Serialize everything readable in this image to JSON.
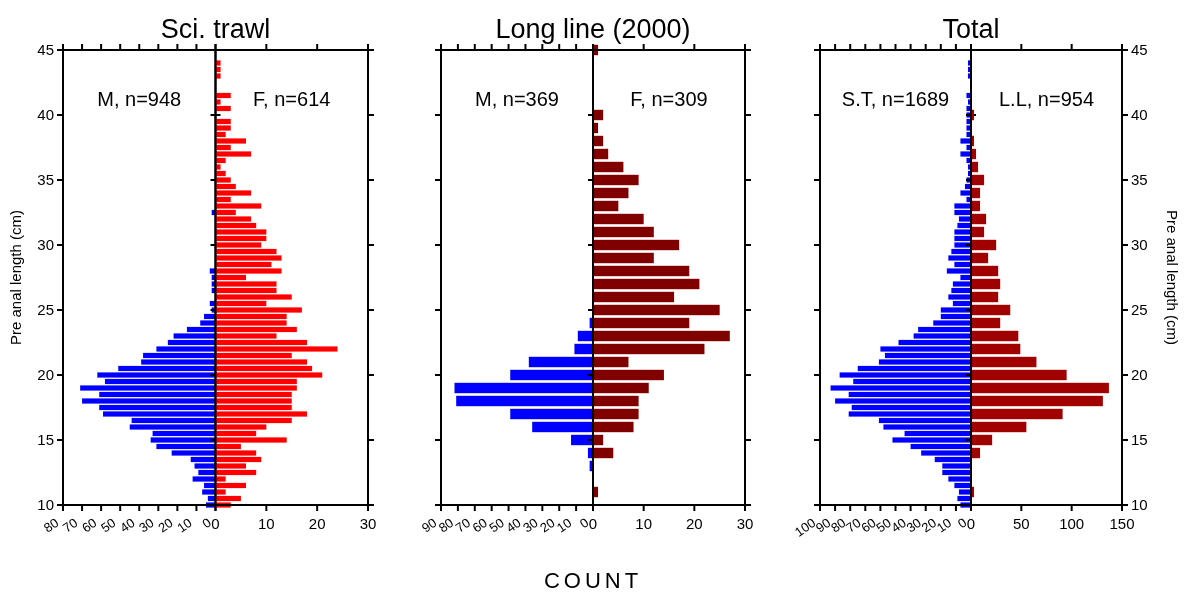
{
  "chart_data": [
    {
      "type": "bar",
      "orientation": "horizontal",
      "title": "Sci. trawl",
      "ylabel": "Pre anal length (cm)",
      "annotations": [
        "M, n=948"
      ],
      "xlim": [
        80,
        0
      ],
      "xticks": [
        80,
        70,
        60,
        50,
        40,
        30,
        20,
        10,
        0
      ],
      "ylim": [
        10,
        45
      ],
      "yticks": [
        10,
        15,
        20,
        25,
        30,
        35,
        40,
        45
      ],
      "series": [
        {
          "color": "#0000ff",
          "x": [
            10,
            10.5,
            11,
            11.5,
            12,
            12.5,
            13,
            13.5,
            14,
            14.5,
            15,
            15.5,
            16,
            16.5,
            17,
            17.5,
            18,
            18.5,
            19,
            19.5,
            20,
            20.5,
            21,
            21.5,
            22,
            22.5,
            23,
            23.5,
            24,
            24.5,
            25,
            25.5,
            26.5,
            27,
            27.5,
            28,
            32.5
          ],
          "values": [
            5,
            4,
            7,
            6,
            12,
            9,
            11,
            13,
            23,
            31,
            34,
            33,
            45,
            44,
            59,
            61,
            70,
            61,
            71,
            58,
            62,
            51,
            39,
            38,
            31,
            25,
            22,
            15,
            8,
            6,
            2,
            3,
            2,
            2,
            2,
            3,
            2
          ]
        }
      ]
    },
    {
      "type": "bar",
      "orientation": "horizontal",
      "annotations": [
        "F, n=614"
      ],
      "xlim": [
        0,
        30
      ],
      "xticks": [
        0,
        10,
        20,
        30
      ],
      "ylim": [
        10,
        45
      ],
      "yticks": [
        10,
        15,
        20,
        25,
        30,
        35,
        40,
        45
      ],
      "tick_labels": "x",
      "series": [
        {
          "color": "#ff0000",
          "x": [
            10,
            10.5,
            11,
            11.5,
            12,
            12.5,
            13,
            13.5,
            14,
            14.5,
            15,
            15.5,
            16,
            16.5,
            17,
            17.5,
            18,
            18.5,
            19,
            19.5,
            20,
            20.5,
            21,
            21.5,
            22,
            22.5,
            23,
            23.5,
            24,
            24.5,
            25,
            25.5,
            26,
            26.5,
            27,
            27.5,
            28,
            28.5,
            29,
            29.5,
            30,
            30.5,
            31,
            31.5,
            32,
            32.5,
            33,
            33.5,
            34,
            34.5,
            35,
            35.5,
            36,
            36.5,
            37,
            37.5,
            38,
            38.5,
            39,
            39.5,
            40.5,
            41,
            41.5,
            43,
            43.5,
            44
          ],
          "values": [
            3,
            5,
            2,
            6,
            2,
            8,
            6,
            9,
            8,
            5,
            14,
            8,
            10,
            15,
            18,
            15,
            15,
            15,
            16,
            16,
            21,
            19,
            18,
            15,
            24,
            18,
            12,
            16,
            14,
            14,
            17,
            10,
            15,
            12,
            12,
            6,
            13,
            11,
            13,
            12,
            9,
            10,
            10,
            8,
            7,
            4,
            9,
            3,
            7,
            4,
            3,
            2,
            1,
            2,
            7,
            3,
            6,
            2,
            3,
            3,
            3,
            1,
            3,
            1,
            1,
            1
          ]
        }
      ]
    },
    {
      "type": "bar",
      "orientation": "horizontal",
      "title": "Long line (2000)",
      "xlabel": "COUNT",
      "annotations": [
        "M, n=369"
      ],
      "xlim": [
        90,
        0
      ],
      "xticks": [
        90,
        80,
        70,
        60,
        50,
        40,
        30,
        20,
        10,
        0
      ],
      "ylim": [
        10,
        45
      ],
      "yticks": [
        10,
        15,
        20,
        25,
        30,
        35,
        40,
        45
      ],
      "tick_labels": "x",
      "series": [
        {
          "color": "#0000ff",
          "x": [
            13,
            14,
            15,
            16,
            17,
            18,
            19,
            20,
            21,
            22,
            23,
            24
          ],
          "values": [
            2,
            3,
            13,
            36,
            49,
            81,
            82,
            49,
            38,
            11,
            9,
            2
          ]
        }
      ]
    },
    {
      "type": "bar",
      "orientation": "horizontal",
      "annotations": [
        "F, n=309"
      ],
      "xlim": [
        0,
        30
      ],
      "xticks": [
        0,
        10,
        20,
        30
      ],
      "ylim": [
        10,
        45
      ],
      "yticks": [
        10,
        15,
        20,
        25,
        30,
        35,
        40,
        45
      ],
      "tick_labels": "x",
      "series": [
        {
          "color": "#800000",
          "x": [
            11,
            14,
            15,
            16,
            17,
            18,
            19,
            20,
            21,
            22,
            23,
            24,
            25,
            26,
            27,
            28,
            29,
            30,
            31,
            32,
            33,
            34,
            35,
            36,
            37,
            38,
            39,
            40,
            45
          ],
          "values": [
            1,
            4,
            2,
            8,
            9,
            9,
            11,
            14,
            7,
            22,
            27,
            19,
            25,
            16,
            21,
            19,
            12,
            17,
            12,
            10,
            5,
            7,
            9,
            6,
            3,
            2,
            1,
            2,
            1
          ]
        }
      ]
    },
    {
      "type": "bar",
      "orientation": "horizontal",
      "title": "Total",
      "annotations": [
        "S.T, n=1689"
      ],
      "xlim": [
        100,
        0
      ],
      "xticks": [
        100,
        90,
        80,
        70,
        60,
        50,
        40,
        30,
        20,
        10,
        0
      ],
      "ylim": [
        10,
        45
      ],
      "yticks": [
        10,
        15,
        20,
        25,
        30,
        35,
        40,
        45
      ],
      "tick_labels": "x",
      "series": [
        {
          "color": "#0000ff",
          "x": [
            10,
            10.5,
            11,
            11.5,
            12,
            12.5,
            13,
            13.5,
            14,
            14.5,
            15,
            15.5,
            16,
            16.5,
            17,
            17.5,
            18,
            18.5,
            19,
            19.5,
            20,
            20.5,
            21,
            21.5,
            22,
            22.5,
            23,
            23.5,
            24,
            24.5,
            25,
            25.5,
            26,
            26.5,
            27,
            27.5,
            28,
            28.5,
            29,
            29.5,
            30,
            30.5,
            31,
            31.5,
            32,
            32.5,
            33,
            33.5,
            34,
            34.5,
            35,
            35.5,
            36,
            36.5,
            37,
            37.5,
            38,
            38.5,
            39,
            39.5,
            40,
            40.5,
            41,
            41.5,
            43,
            43.5,
            44
          ],
          "values": [
            7,
            9,
            8,
            11,
            15,
            19,
            19,
            24,
            33,
            40,
            52,
            44,
            58,
            61,
            81,
            79,
            90,
            81,
            93,
            78,
            87,
            75,
            61,
            57,
            60,
            48,
            38,
            35,
            25,
            20,
            20,
            12,
            15,
            13,
            12,
            7,
            16,
            11,
            15,
            13,
            11,
            11,
            11,
            9,
            8,
            11,
            11,
            3,
            7,
            4,
            3,
            2,
            2,
            3,
            7,
            3,
            7,
            3,
            3,
            3,
            3,
            3,
            2,
            3,
            2,
            2,
            2
          ]
        }
      ]
    },
    {
      "type": "bar",
      "orientation": "horizontal",
      "ylabel": "Pre anal length (cm)",
      "annotations": [
        "L.L, n=954"
      ],
      "xlim": [
        0,
        150
      ],
      "xticks": [
        0,
        50,
        100,
        150
      ],
      "ylim": [
        10,
        45
      ],
      "yticks": [
        10,
        15,
        20,
        25,
        30,
        35,
        40,
        45
      ],
      "series": [
        {
          "color": "#a00000",
          "x": [
            11,
            14,
            15,
            16,
            17,
            18,
            19,
            20,
            21,
            22,
            23,
            24,
            25,
            26,
            27,
            28,
            29,
            30,
            31,
            32,
            33,
            34,
            35,
            36,
            37,
            38,
            40
          ],
          "values": [
            3,
            9,
            21,
            55,
            91,
            131,
            137,
            95,
            65,
            49,
            47,
            29,
            39,
            27,
            29,
            27,
            17,
            25,
            13,
            15,
            9,
            9,
            13,
            7,
            5,
            3,
            3
          ]
        }
      ]
    }
  ]
}
